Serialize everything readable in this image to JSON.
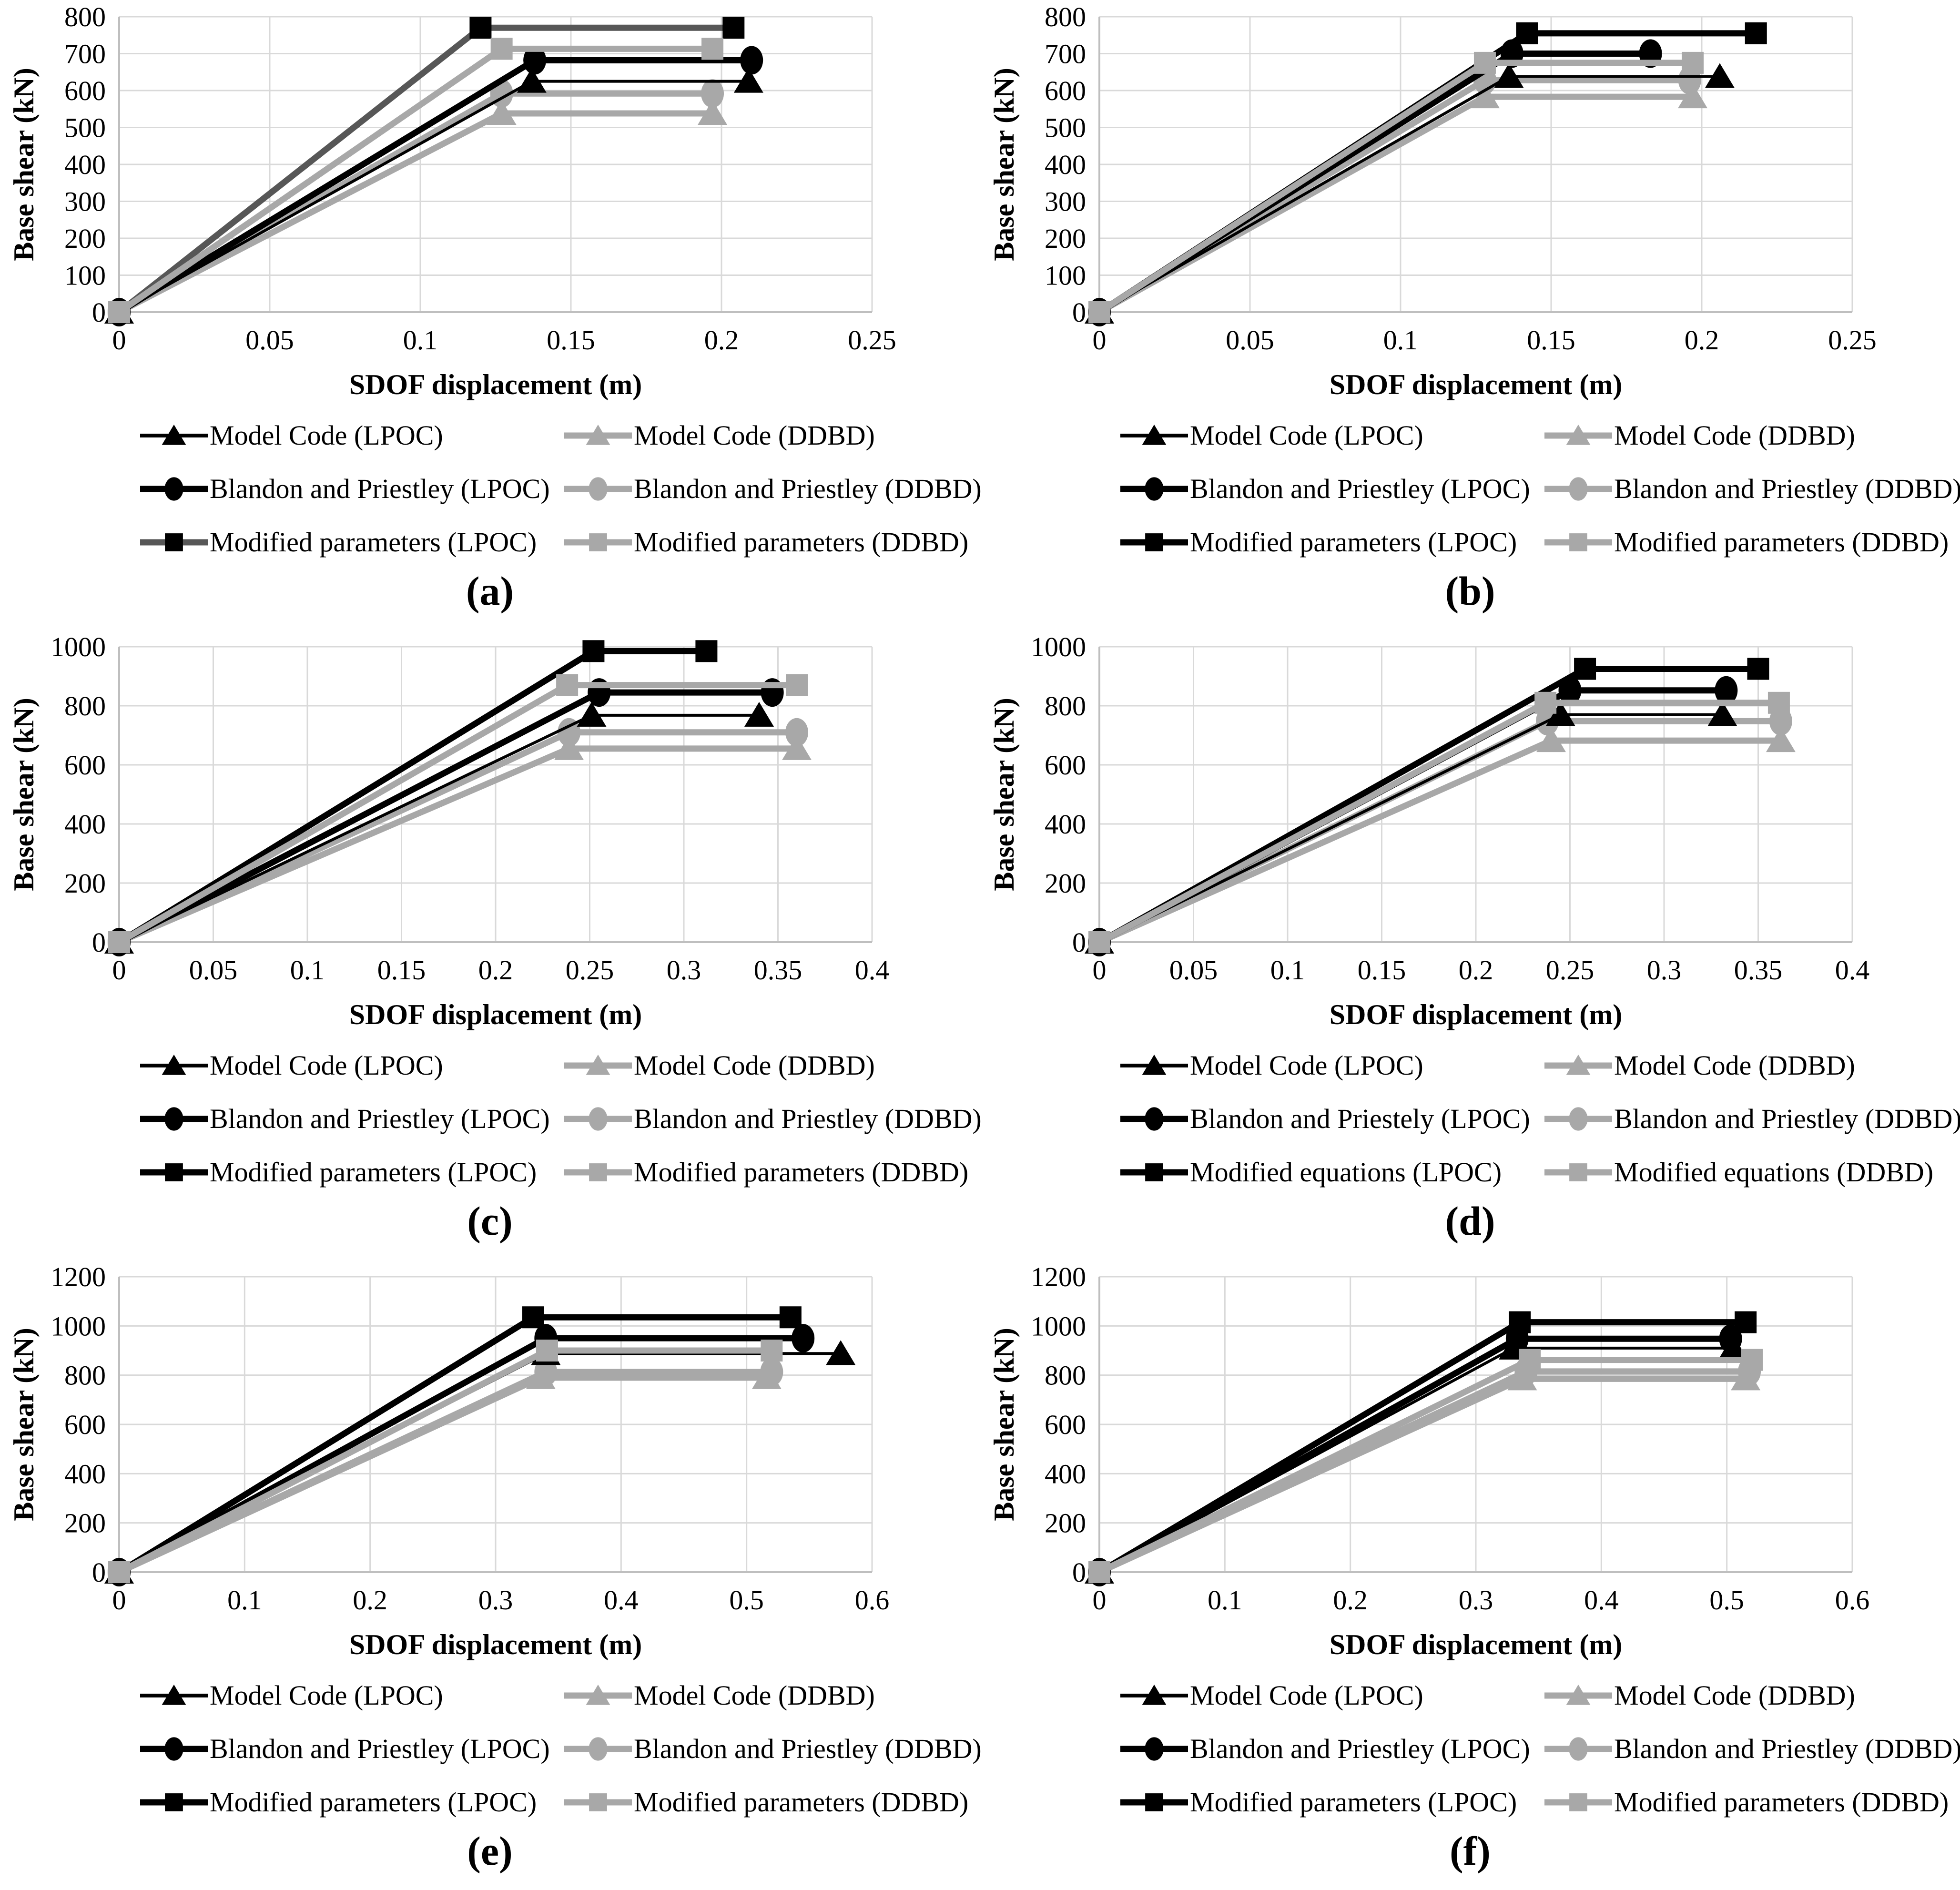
{
  "figure": {
    "xlabel": "SDOF displacement (m)",
    "ylabel": "Base shear (kN)"
  },
  "colors": {
    "black": "#000000",
    "gray": "#a8a8a8",
    "darkgray": "#575757",
    "grid": "#d9d9d9",
    "axis": "#bfbfbf",
    "text": "#000000"
  },
  "chart_data": [
    {
      "id": "a",
      "label": "(a)",
      "type": "line",
      "xlabel": "SDOF displacement (m)",
      "ylabel": "Base shear (kN)",
      "xlim": [
        0,
        0.25
      ],
      "ylim": [
        0,
        800
      ],
      "xticks": [
        "0",
        "0.05",
        "0.1",
        "0.15",
        "0.2",
        "0.25"
      ],
      "yticks": [
        "0",
        "100",
        "200",
        "300",
        "400",
        "500",
        "600",
        "700",
        "800"
      ],
      "series": [
        {
          "name": "Model Code (LPOC)",
          "marker": "triangle",
          "color": "black",
          "lw": 6,
          "points": [
            [
              0,
              0
            ],
            [
              0.137,
              625
            ],
            [
              0.209,
              625
            ]
          ]
        },
        {
          "name": "Model Code (DDBD)",
          "marker": "triangle",
          "color": "gray",
          "lw": 13,
          "points": [
            [
              0,
              0
            ],
            [
              0.127,
              538
            ],
            [
              0.197,
              538
            ]
          ]
        },
        {
          "name": "Blandon and Priestley (LPOC)",
          "marker": "circle",
          "color": "black",
          "lw": 13,
          "points": [
            [
              0,
              0
            ],
            [
              0.138,
              682
            ],
            [
              0.21,
              682
            ]
          ]
        },
        {
          "name": "Blandon and Priestley (DDBD)",
          "marker": "circle",
          "color": "gray",
          "lw": 13,
          "points": [
            [
              0,
              0
            ],
            [
              0.127,
              592
            ],
            [
              0.197,
              592
            ]
          ]
        },
        {
          "name": "Modified parameters (LPOC)",
          "marker": "square",
          "color": "black",
          "line_color": "darkgray",
          "lw": 13,
          "points": [
            [
              0,
              0
            ],
            [
              0.12,
              770
            ],
            [
              0.204,
              770
            ]
          ]
        },
        {
          "name": "Modified parameters (DDBD)",
          "marker": "square",
          "color": "gray",
          "lw": 13,
          "points": [
            [
              0,
              0
            ],
            [
              0.127,
              713
            ],
            [
              0.197,
              713
            ]
          ]
        }
      ]
    },
    {
      "id": "b",
      "label": "(b)",
      "type": "line",
      "xlabel": "SDOF displacement (m)",
      "ylabel": "Base shear (kN)",
      "xlim": [
        0,
        0.25
      ],
      "ylim": [
        0,
        800
      ],
      "xticks": [
        "0",
        "0.05",
        "0.1",
        "0.15",
        "0.2",
        "0.25"
      ],
      "yticks": [
        "0",
        "100",
        "200",
        "300",
        "400",
        "500",
        "600",
        "700",
        "800"
      ],
      "series": [
        {
          "name": "Model Code (LPOC)",
          "marker": "triangle",
          "color": "black",
          "lw": 6,
          "points": [
            [
              0,
              0
            ],
            [
              0.136,
              638
            ],
            [
              0.206,
              638
            ]
          ]
        },
        {
          "name": "Model Code (DDBD)",
          "marker": "triangle",
          "color": "gray",
          "lw": 13,
          "points": [
            [
              0,
              0
            ],
            [
              0.128,
              583
            ],
            [
              0.197,
              583
            ]
          ]
        },
        {
          "name": "Blandon and Priestley (LPOC)",
          "marker": "circle",
          "color": "black",
          "lw": 13,
          "points": [
            [
              0,
              0
            ],
            [
              0.137,
              700
            ],
            [
              0.183,
              700
            ]
          ]
        },
        {
          "name": "Blandon and Priestley (DDBD)",
          "marker": "circle",
          "color": "gray",
          "lw": 13,
          "points": [
            [
              0,
              0
            ],
            [
              0.128,
              628
            ],
            [
              0.196,
              628
            ]
          ]
        },
        {
          "name": "Modified parameters (LPOC)",
          "marker": "square",
          "color": "black",
          "lw": 13,
          "points": [
            [
              0,
              0
            ],
            [
              0.142,
              755
            ],
            [
              0.218,
              755
            ]
          ]
        },
        {
          "name": "Modified parameters (DDBD)",
          "marker": "square",
          "color": "gray",
          "lw": 13,
          "points": [
            [
              0,
              0
            ],
            [
              0.128,
              675
            ],
            [
              0.197,
              675
            ]
          ]
        }
      ]
    },
    {
      "id": "c",
      "label": "(c)",
      "type": "line",
      "xlabel": "SDOF displacement (m)",
      "ylabel": "Base shear (kN)",
      "xlim": [
        0,
        0.4
      ],
      "ylim": [
        0,
        1000
      ],
      "xticks": [
        "0",
        "0.05",
        "0.1",
        "0.15",
        "0.2",
        "0.25",
        "0.3",
        "0.35",
        "0.4"
      ],
      "yticks": [
        "0",
        "200",
        "400",
        "600",
        "800",
        "1000"
      ],
      "series": [
        {
          "name": "Model Code (LPOC)",
          "marker": "triangle",
          "color": "black",
          "lw": 6,
          "points": [
            [
              0,
              0
            ],
            [
              0.251,
              768
            ],
            [
              0.34,
              768
            ]
          ]
        },
        {
          "name": "Model Code (DDBD)",
          "marker": "triangle",
          "color": "gray",
          "lw": 13,
          "points": [
            [
              0,
              0
            ],
            [
              0.239,
              655
            ],
            [
              0.36,
              655
            ]
          ]
        },
        {
          "name": "Blandon and Priestley (LPOC)",
          "marker": "circle",
          "color": "black",
          "lw": 13,
          "points": [
            [
              0,
              0
            ],
            [
              0.255,
              845
            ],
            [
              0.347,
              845
            ]
          ]
        },
        {
          "name": "Blandon and Priestley (DDBD)",
          "marker": "circle",
          "color": "gray",
          "lw": 13,
          "points": [
            [
              0,
              0
            ],
            [
              0.239,
              710
            ],
            [
              0.36,
              710
            ]
          ]
        },
        {
          "name": "Modified parameters (LPOC)",
          "marker": "square",
          "color": "black",
          "lw": 13,
          "points": [
            [
              0,
              0
            ],
            [
              0.252,
              985
            ],
            [
              0.312,
              985
            ]
          ]
        },
        {
          "name": "Modified parameters (DDBD)",
          "marker": "square",
          "color": "gray",
          "lw": 13,
          "points": [
            [
              0,
              0
            ],
            [
              0.238,
              870
            ],
            [
              0.36,
              870
            ]
          ]
        }
      ]
    },
    {
      "id": "d",
      "label": "(d)",
      "type": "line",
      "xlabel": "SDOF displacement (m)",
      "ylabel": "Base shear (kN)",
      "xlim": [
        0,
        0.4
      ],
      "ylim": [
        0,
        1000
      ],
      "xticks": [
        "0",
        "0.05",
        "0.1",
        "0.15",
        "0.2",
        "0.25",
        "0.3",
        "0.35",
        "0.4"
      ],
      "yticks": [
        "0",
        "200",
        "400",
        "600",
        "800",
        "1000"
      ],
      "series": [
        {
          "name": "Model Code (LPOC)",
          "marker": "triangle",
          "color": "black",
          "lw": 6,
          "points": [
            [
              0,
              0
            ],
            [
              0.245,
              770
            ],
            [
              0.331,
              770
            ]
          ]
        },
        {
          "name": "Model Code (DDBD)",
          "marker": "triangle",
          "color": "gray",
          "lw": 13,
          "points": [
            [
              0,
              0
            ],
            [
              0.24,
              682
            ],
            [
              0.362,
              682
            ]
          ]
        },
        {
          "name": "Blandon and Priestely (LPOC)",
          "marker": "circle",
          "color": "black",
          "lw": 13,
          "points": [
            [
              0,
              0
            ],
            [
              0.25,
              852
            ],
            [
              0.333,
              852
            ]
          ]
        },
        {
          "name": "Blandon and Priestley (DDBD)",
          "marker": "circle",
          "color": "gray",
          "lw": 13,
          "points": [
            [
              0,
              0
            ],
            [
              0.238,
              748
            ],
            [
              0.362,
              748
            ]
          ]
        },
        {
          "name": "Modified equations (LPOC)",
          "marker": "square",
          "color": "black",
          "lw": 13,
          "points": [
            [
              0,
              0
            ],
            [
              0.258,
              925
            ],
            [
              0.35,
              925
            ]
          ]
        },
        {
          "name": "Modified equations (DDBD)",
          "marker": "square",
          "color": "gray",
          "lw": 13,
          "points": [
            [
              0,
              0
            ],
            [
              0.237,
              810
            ],
            [
              0.361,
              810
            ]
          ]
        }
      ]
    },
    {
      "id": "e",
      "label": "(e)",
      "type": "line",
      "xlabel": "SDOF displacement (m)",
      "ylabel": "Base shear (kN)",
      "xlim": [
        0,
        0.6
      ],
      "ylim": [
        0,
        1200
      ],
      "xticks": [
        "0",
        "0.1",
        "0.2",
        "0.3",
        "0.4",
        "0.5",
        "0.6"
      ],
      "yticks": [
        "0",
        "200",
        "400",
        "600",
        "800",
        "1000",
        "1200"
      ],
      "series": [
        {
          "name": "Model Code (LPOC)",
          "marker": "triangle",
          "color": "black",
          "lw": 6,
          "points": [
            [
              0,
              0
            ],
            [
              0.34,
              888
            ],
            [
              0.575,
              888
            ]
          ]
        },
        {
          "name": "Model Code (DDBD)",
          "marker": "triangle",
          "color": "gray",
          "lw": 13,
          "points": [
            [
              0,
              0
            ],
            [
              0.336,
              790
            ],
            [
              0.516,
              790
            ]
          ]
        },
        {
          "name": "Blandon and Priestley (LPOC)",
          "marker": "circle",
          "color": "black",
          "lw": 13,
          "points": [
            [
              0,
              0
            ],
            [
              0.34,
              950
            ],
            [
              0.545,
              950
            ]
          ]
        },
        {
          "name": "Blandon and Priestley (DDBD)",
          "marker": "circle",
          "color": "gray",
          "lw": 13,
          "points": [
            [
              0,
              0
            ],
            [
              0.34,
              813
            ],
            [
              0.52,
              813
            ]
          ]
        },
        {
          "name": "Modified parameters (LPOC)",
          "marker": "square",
          "color": "black",
          "lw": 13,
          "points": [
            [
              0,
              0
            ],
            [
              0.33,
              1035
            ],
            [
              0.535,
              1035
            ]
          ]
        },
        {
          "name": "Modified parameters (DDBD)",
          "marker": "square",
          "color": "gray",
          "lw": 13,
          "points": [
            [
              0,
              0
            ],
            [
              0.341,
              900
            ],
            [
              0.52,
              900
            ]
          ]
        }
      ]
    },
    {
      "id": "f",
      "label": "(f)",
      "type": "line",
      "xlabel": "SDOF displacement (m)",
      "ylabel": "Base shear (kN)",
      "xlim": [
        0,
        0.6
      ],
      "ylim": [
        0,
        1200
      ],
      "xticks": [
        "0",
        "0.1",
        "0.2",
        "0.3",
        "0.4",
        "0.5",
        "0.6"
      ],
      "yticks": [
        "0",
        "200",
        "400",
        "600",
        "800",
        "1000",
        "1200"
      ],
      "series": [
        {
          "name": "Model Code (LPOC)",
          "marker": "triangle",
          "color": "black",
          "lw": 6,
          "points": [
            [
              0,
              0
            ],
            [
              0.33,
              910
            ],
            [
              0.505,
              910
            ]
          ]
        },
        {
          "name": "Model Code (DDBD)",
          "marker": "triangle",
          "color": "gray",
          "lw": 13,
          "points": [
            [
              0,
              0
            ],
            [
              0.337,
              785
            ],
            [
              0.515,
              785
            ]
          ]
        },
        {
          "name": "Blandon and Priestley (LPOC)",
          "marker": "circle",
          "color": "black",
          "lw": 13,
          "points": [
            [
              0,
              0
            ],
            [
              0.333,
              948
            ],
            [
              0.503,
              948
            ]
          ]
        },
        {
          "name": "Blandon and Priestley (DDBD)",
          "marker": "circle",
          "color": "gray",
          "lw": 13,
          "points": [
            [
              0,
              0
            ],
            [
              0.34,
              815
            ],
            [
              0.518,
              815
            ]
          ]
        },
        {
          "name": "Modified parameters (LPOC)",
          "marker": "square",
          "color": "black",
          "lw": 13,
          "points": [
            [
              0,
              0
            ],
            [
              0.335,
              1015
            ],
            [
              0.515,
              1015
            ]
          ]
        },
        {
          "name": "Modified parameters (DDBD)",
          "marker": "square",
          "color": "gray",
          "lw": 13,
          "points": [
            [
              0,
              0
            ],
            [
              0.343,
              862
            ],
            [
              0.52,
              862
            ]
          ]
        }
      ]
    }
  ]
}
